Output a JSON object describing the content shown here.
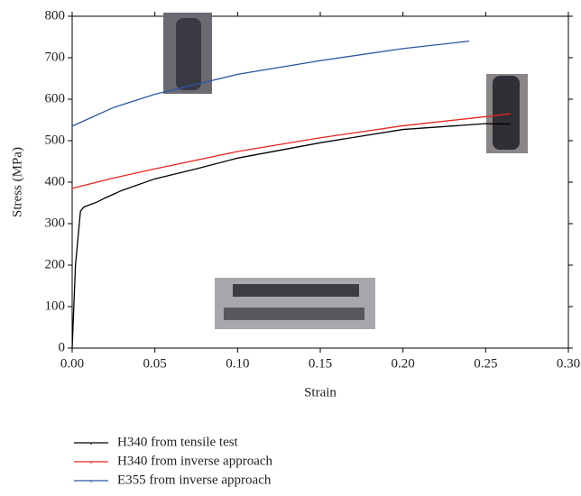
{
  "chart_data": {
    "type": "line",
    "x_label": "Strain",
    "y_label": "Stress (MPa)",
    "xlim": [
      0,
      0.3
    ],
    "xticks": [
      {
        "value": 0,
        "label": "0.00"
      },
      {
        "value": 0.05,
        "label": "0.05"
      },
      {
        "value": 0.1,
        "label": "0.10"
      },
      {
        "value": 0.15,
        "label": "0.15"
      },
      {
        "value": 0.2,
        "label": "0.20"
      },
      {
        "value": 0.25,
        "label": "0.25"
      },
      {
        "value": 0.3,
        "label": "0.30"
      }
    ],
    "ylim": [
      0,
      800
    ],
    "yticks": [
      0,
      100,
      200,
      300,
      400,
      500,
      600,
      700,
      800
    ],
    "series": [
      {
        "name": "H340 from tensile test",
        "color": "#000000",
        "x": [
          0,
          0.002,
          0.005,
          0.007,
          0.015,
          0.02,
          0.03,
          0.05,
          0.075,
          0.1,
          0.15,
          0.2,
          0.25,
          0.265
        ],
        "values": [
          0,
          200,
          330,
          340,
          352,
          362,
          380,
          408,
          432,
          458,
          495,
          527,
          541,
          540
        ]
      },
      {
        "name": "H340 from inverse approach",
        "color": "#e8251f",
        "x": [
          0,
          0.025,
          0.05,
          0.1,
          0.15,
          0.2,
          0.25,
          0.265
        ],
        "values": [
          385,
          410,
          432,
          474,
          507,
          536,
          558,
          565
        ]
      },
      {
        "name": "E355 from inverse approach",
        "color": "#2a56a0",
        "x": [
          0,
          0.025,
          0.05,
          0.1,
          0.15,
          0.2,
          0.24
        ],
        "values": [
          535,
          580,
          612,
          660,
          693,
          722,
          740
        ]
      }
    ]
  }
}
